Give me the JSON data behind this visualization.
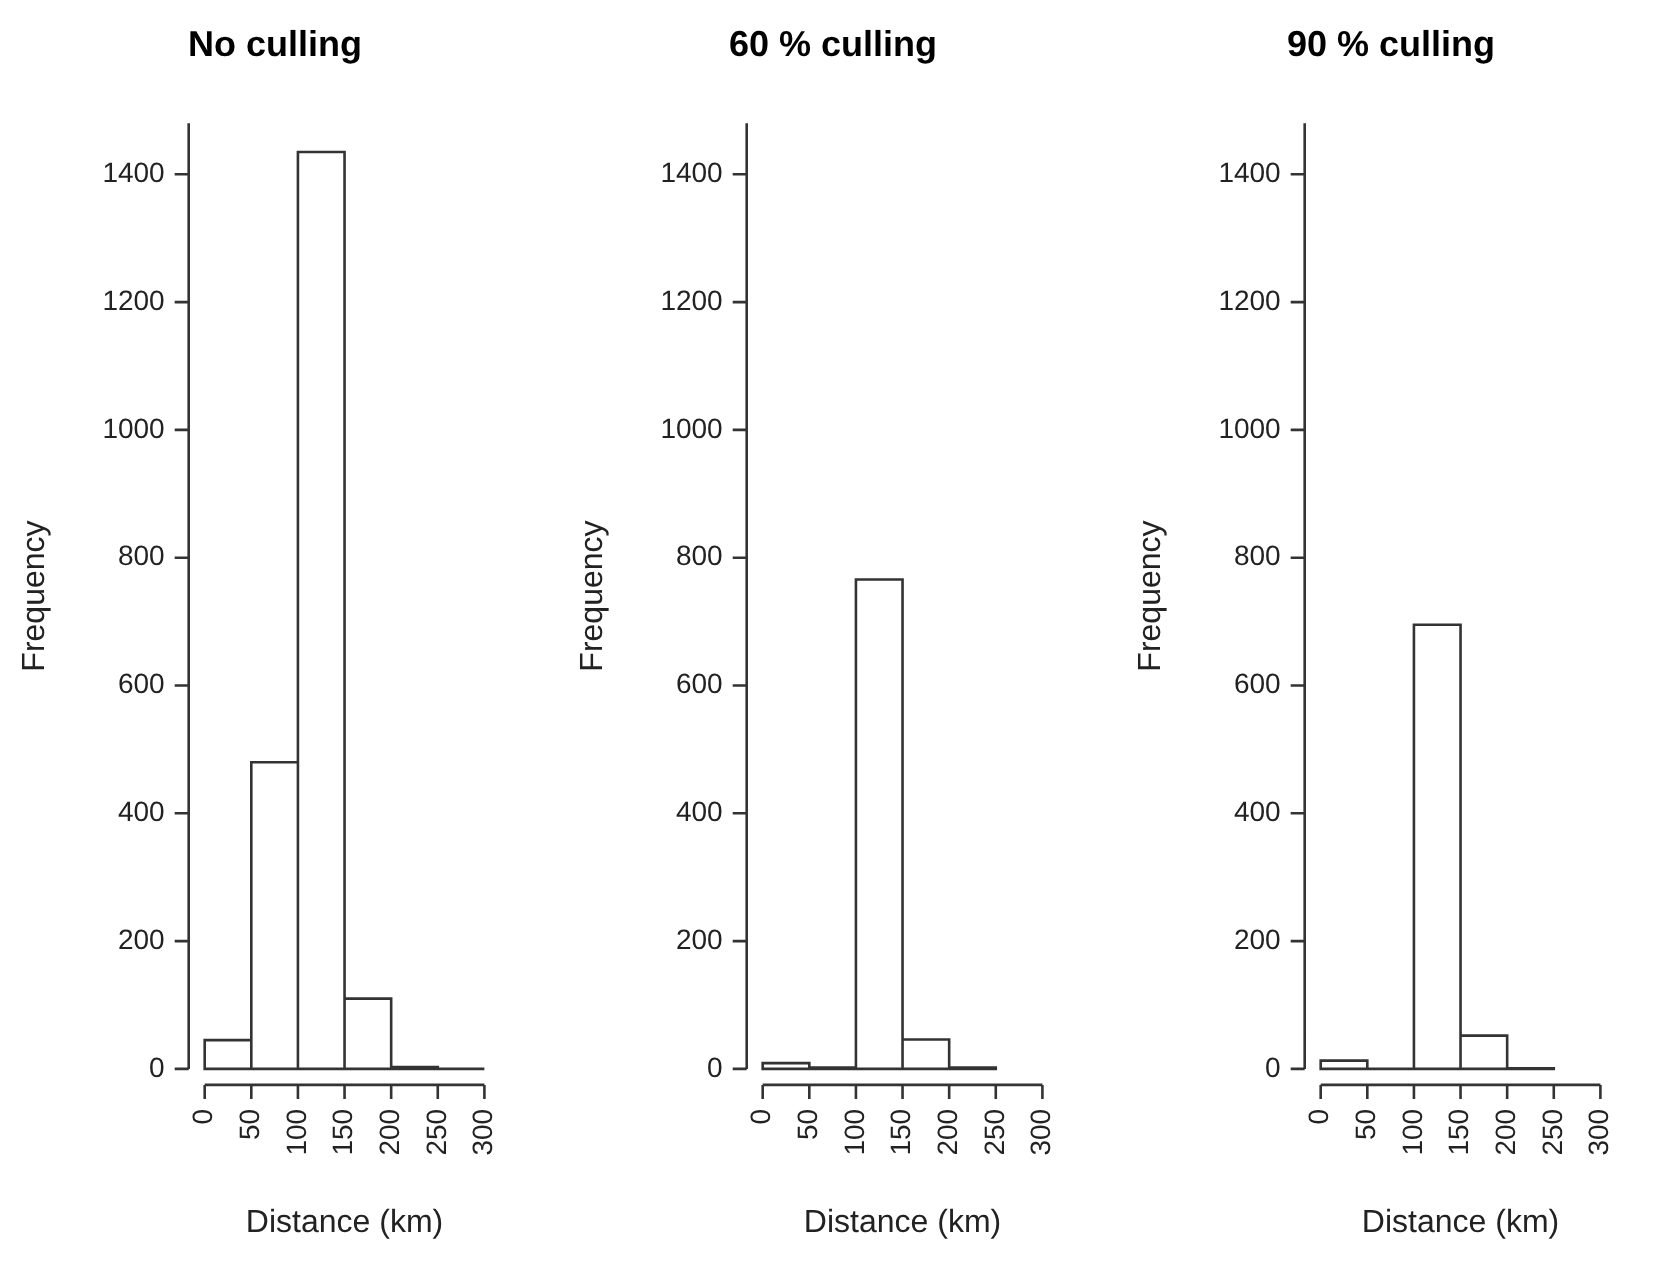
{
  "chart_data": [
    {
      "type": "histogram",
      "title": "No culling",
      "xlabel": "Distance (km)",
      "ylabel": "Frequency",
      "color": "#ffffff",
      "bins": [
        0,
        50,
        100,
        150,
        200,
        250,
        300
      ],
      "values": [
        45,
        480,
        1435,
        110,
        3,
        0
      ],
      "xlim": [
        0,
        300
      ],
      "xticks": [
        0,
        50,
        100,
        150,
        200,
        250,
        300
      ],
      "ylim": [
        0,
        1480
      ],
      "yticks": [
        0,
        200,
        400,
        600,
        800,
        1000,
        1200,
        1400
      ],
      "grid": false,
      "legend": false
    },
    {
      "type": "histogram",
      "title": "60 % culling",
      "xlabel": "Distance (km)",
      "ylabel": "Frequency",
      "color": "#ffffff",
      "bins": [
        0,
        50,
        100,
        150,
        200,
        250
      ],
      "values": [
        9,
        2,
        766,
        46,
        2
      ],
      "xlim": [
        0,
        300
      ],
      "xticks": [
        0,
        50,
        100,
        150,
        200,
        250,
        300
      ],
      "ylim": [
        0,
        1480
      ],
      "yticks": [
        0,
        200,
        400,
        600,
        800,
        1000,
        1200,
        1400
      ],
      "grid": false,
      "legend": false
    },
    {
      "type": "histogram",
      "title": "90 % culling",
      "xlabel": "Distance (km)",
      "ylabel": "Frequency",
      "color": "#ffffff",
      "bins": [
        0,
        50,
        100,
        150,
        200,
        250
      ],
      "values": [
        13,
        0,
        695,
        52,
        1
      ],
      "xlim": [
        0,
        300
      ],
      "xticks": [
        0,
        50,
        100,
        150,
        200,
        250,
        300
      ],
      "ylim": [
        0,
        1480
      ],
      "yticks": [
        0,
        200,
        400,
        600,
        800,
        1000,
        1200,
        1400
      ],
      "grid": false,
      "legend": false
    }
  ]
}
